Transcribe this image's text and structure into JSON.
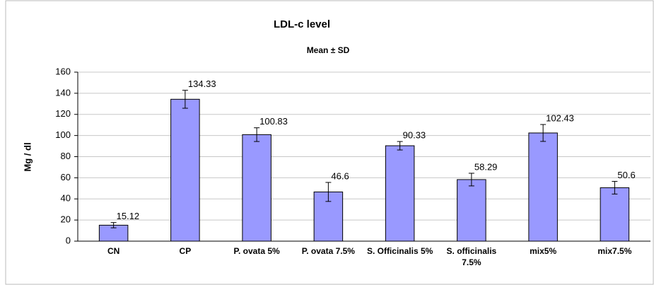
{
  "chart_data": {
    "type": "bar",
    "title": "LDL-c level",
    "subtitle": "Mean ± SD",
    "y_label": "Mg / dl",
    "categories": [
      "CN",
      "CP",
      "P. ovata 5%",
      "P. ovata 7.5%",
      "S. Officinalis 5%",
      "S. officinalis 7.5%",
      "mix5%",
      "mix7.5%"
    ],
    "values": [
      15.12,
      134.33,
      100.83,
      46.6,
      90.33,
      58.29,
      102.43,
      50.6
    ],
    "errors": [
      2.5,
      8.5,
      6.5,
      9,
      4,
      6,
      8,
      6
    ],
    "color": "#9999ff",
    "ylim": [
      0,
      160
    ],
    "yticks": [
      0,
      20,
      40,
      60,
      80,
      100,
      120,
      140,
      160
    ],
    "grid": true
  }
}
